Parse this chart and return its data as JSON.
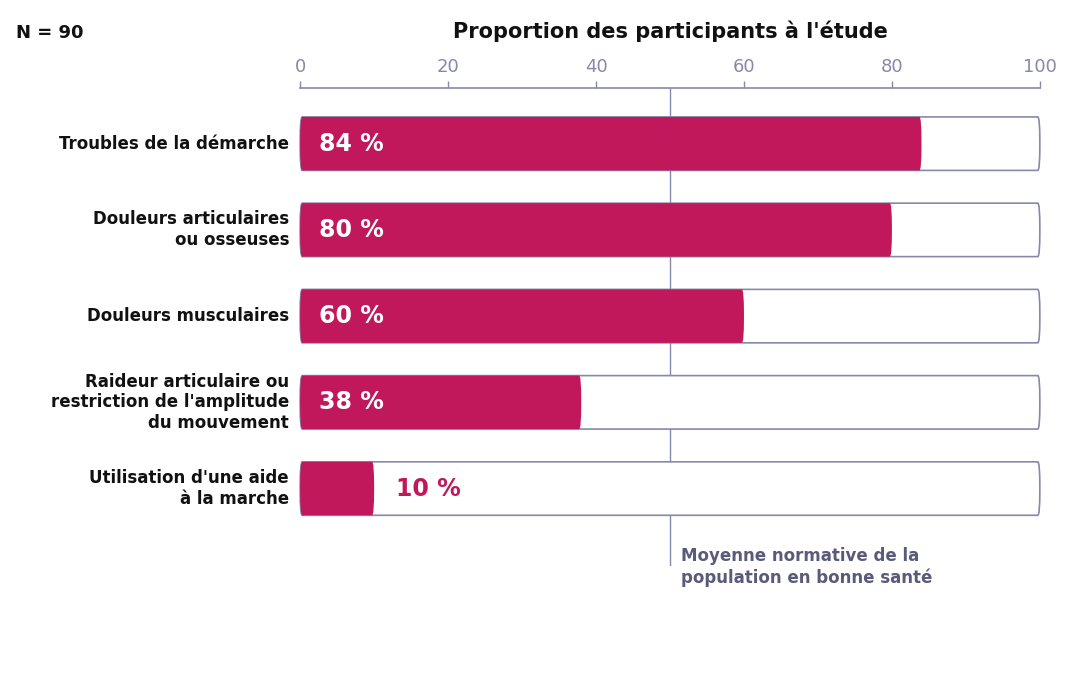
{
  "title": "Proportion des participants à l'étude",
  "n_label": "N = 90",
  "categories": [
    "Troubles de la démarche",
    "Douleurs articulaires\nou osseuses",
    "Douleurs musculaires",
    "Raideur articulaire ou\nrestriction de l'amplitude\ndu mouvement",
    "Utilisation d'une aide\nà la marche"
  ],
  "values": [
    84,
    80,
    60,
    38,
    10
  ],
  "labels": [
    "84 %",
    "80 %",
    "60 %",
    "38 %",
    "10 %"
  ],
  "bar_color": "#C0185A",
  "bg_bar_color": "#FFFFFF",
  "bar_edge_color": "#8888AA",
  "xlim": [
    0,
    100
  ],
  "xticks": [
    0,
    20,
    40,
    60,
    80,
    100
  ],
  "reference_line_x": 50,
  "reference_line_color": "#8888AA",
  "title_color": "#111111",
  "category_color": "#111111",
  "n_label_color": "#111111",
  "annotation_text": "Moyenne normative de la\npopulation en bonne santé",
  "annotation_color": "#5A5A7A",
  "tick_color": "#8888AA",
  "axis_color": "#8888AA",
  "background_color": "#FFFFFF",
  "bar_height": 0.62,
  "label_fontsize": 17,
  "category_fontsize": 12,
  "title_fontsize": 15
}
